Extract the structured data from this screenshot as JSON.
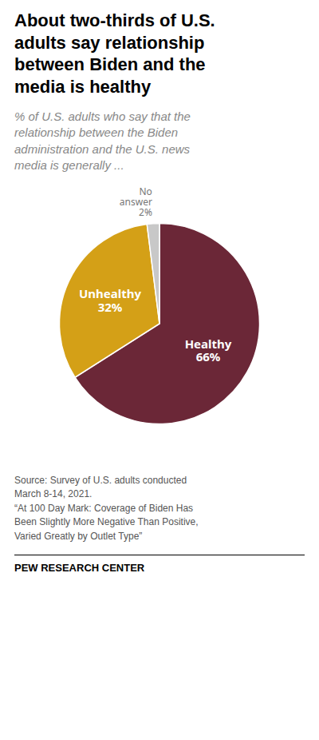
{
  "chart_data": {
    "type": "pie",
    "title": "About two-thirds of U.S.\nadults say relationship\nbetween Biden and the\nmedia is healthy",
    "subtitle": "% of U.S. adults who say that the\nrelationship between the Biden\nadministration and the U.S. news\nmedia is generally ...",
    "categories": [
      "Healthy",
      "Unhealthy",
      "No answer"
    ],
    "values": [
      66,
      32,
      2
    ],
    "value_labels": [
      "66%",
      "32%",
      "2%"
    ],
    "colors": [
      "#6b2737",
      "#d4a017",
      "#c8c8c8"
    ],
    "data_labels": true,
    "source": "Source: Survey of U.S. adults conducted\nMarch 8-14, 2021.\n“At 100 Day Mark: Coverage of Biden Has\nBeen Slightly More Negative Than Positive,\nVaried Greatly by Outlet Type”",
    "footer": "PEW RESEARCH CENTER"
  }
}
